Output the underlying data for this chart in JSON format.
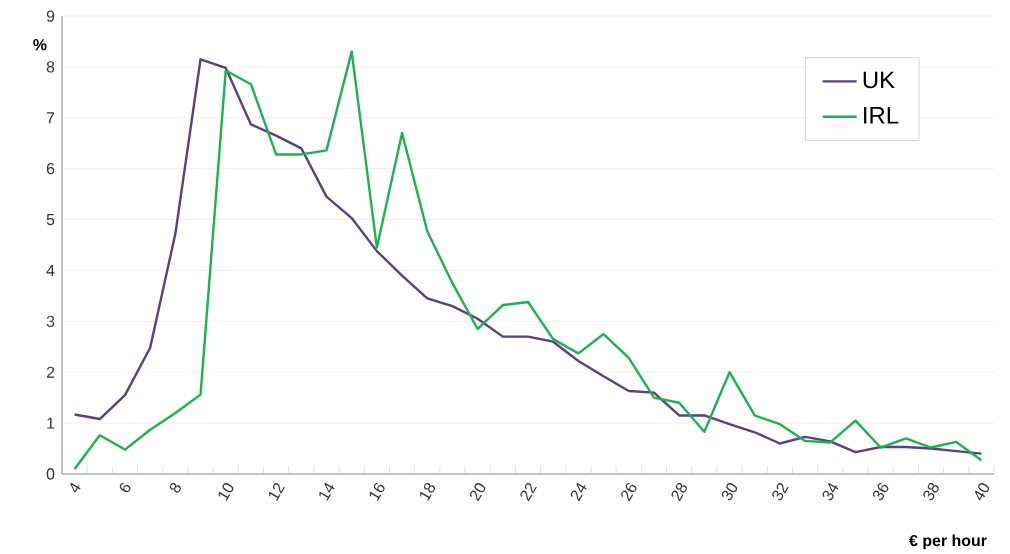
{
  "chart_data": {
    "type": "line",
    "ylabel": "%",
    "xlabel": "€ per hour",
    "categories": [
      "4",
      null,
      "6",
      null,
      "8",
      null,
      "10",
      null,
      "12",
      null,
      "14",
      null,
      "16",
      null,
      "18",
      null,
      "20",
      null,
      "22",
      null,
      "24",
      null,
      "26",
      null,
      "28",
      null,
      "30",
      null,
      "32",
      null,
      "34",
      null,
      "36",
      null,
      "38",
      null,
      "40"
    ],
    "series": [
      {
        "name": "UK",
        "color": "#5b3f7f",
        "values": [
          1.17,
          1.08,
          1.55,
          2.48,
          4.72,
          8.15,
          7.98,
          6.87,
          6.65,
          6.4,
          5.45,
          5.03,
          4.38,
          3.9,
          3.45,
          3.3,
          3.05,
          2.7,
          2.7,
          2.6,
          2.22,
          1.92,
          1.63,
          1.6,
          1.15,
          1.15,
          0.98,
          0.82,
          0.6,
          0.73,
          0.64,
          0.43,
          0.53,
          0.53,
          0.5,
          0.45,
          0.4
        ]
      },
      {
        "name": "IRL",
        "color": "#1db34c",
        "values": [
          0.1,
          0.76,
          0.48,
          0.87,
          1.2,
          1.56,
          7.93,
          7.66,
          6.28,
          6.28,
          6.36,
          8.3,
          4.45,
          6.7,
          4.77,
          3.75,
          2.85,
          3.32,
          3.38,
          2.65,
          2.37,
          2.75,
          2.28,
          1.5,
          1.4,
          0.83,
          2.0,
          1.15,
          0.98,
          0.65,
          0.62,
          1.05,
          0.52,
          0.7,
          0.52,
          0.63,
          0.27
        ]
      }
    ],
    "ylim": [
      0,
      9
    ],
    "yticks": [
      0,
      1,
      2,
      3,
      4,
      5,
      6,
      7,
      8,
      9
    ],
    "grid": "y",
    "legend": "top right",
    "marker": "none",
    "line_style": "solid"
  }
}
